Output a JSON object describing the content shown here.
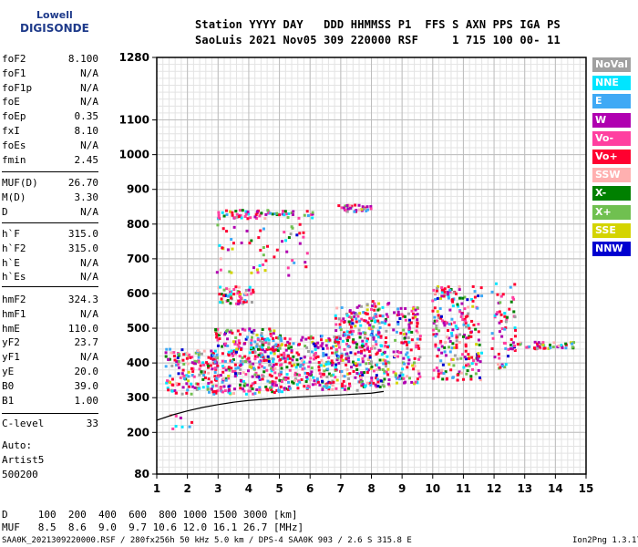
{
  "logo": {
    "line1": "Lowell",
    "line2": "DIGISONDE"
  },
  "header": {
    "row1": "Station YYYY DAY   DDD HHMMSS P1  FFS S AXN PPS IGA PS",
    "row2": "SaoLuis 2021 Nov05 309 220000 RSF     1 715 100 00- 11"
  },
  "params_group1": [
    {
      "name": "foF2",
      "value": "8.100"
    },
    {
      "name": "foF1",
      "value": "N/A"
    },
    {
      "name": "foF1p",
      "value": "N/A"
    },
    {
      "name": "foE",
      "value": "N/A"
    },
    {
      "name": "foEp",
      "value": "0.35"
    },
    {
      "name": "fxI",
      "value": "8.10"
    },
    {
      "name": "foEs",
      "value": "N/A"
    },
    {
      "name": "fmin",
      "value": "2.45"
    }
  ],
  "params_group2": [
    {
      "name": "MUF(D)",
      "value": "26.70"
    },
    {
      "name": "M(D)",
      "value": "3.30"
    },
    {
      "name": "D",
      "value": "N/A"
    }
  ],
  "params_group3": [
    {
      "name": "h`F",
      "value": "315.0"
    },
    {
      "name": "h`F2",
      "value": "315.0"
    },
    {
      "name": "h`E",
      "value": "N/A"
    },
    {
      "name": "h`Es",
      "value": "N/A"
    }
  ],
  "params_group4": [
    {
      "name": "hmF2",
      "value": "324.3"
    },
    {
      "name": "hmF1",
      "value": "N/A"
    },
    {
      "name": "hmE",
      "value": "110.0"
    },
    {
      "name": "yF2",
      "value": "23.7"
    },
    {
      "name": "yF1",
      "value": "N/A"
    },
    {
      "name": "yE",
      "value": "20.0"
    },
    {
      "name": "B0",
      "value": "39.0"
    },
    {
      "name": "B1",
      "value": "1.00"
    }
  ],
  "clevel": {
    "name": "C-level",
    "value": "33"
  },
  "auto": {
    "line1": "Auto:",
    "line2": "Artist5",
    "line3": "500200"
  },
  "legend": [
    {
      "label": "NoVal",
      "color": "#a0a0a0"
    },
    {
      "label": "NNE",
      "color": "#00e5ff"
    },
    {
      "label": "E",
      "color": "#3fa9f5"
    },
    {
      "label": "W",
      "color": "#b000b0"
    },
    {
      "label": "Vo-",
      "color": "#ff3fa0"
    },
    {
      "label": "Vo+",
      "color": "#ff0030"
    },
    {
      "label": "SSW",
      "color": "#ffb0b0"
    },
    {
      "label": "X-",
      "color": "#008000"
    },
    {
      "label": "X+",
      "color": "#70c050"
    },
    {
      "label": "SSE",
      "color": "#d4d400"
    },
    {
      "label": "NNW",
      "color": "#0000d0"
    }
  ],
  "footer": {
    "d_row": "D     100  200  400  600  800 1000 1500 3000 [km]",
    "muf_row": "MUF   8.5  8.6  9.0  9.7 10.6 12.0 16.1 26.7 [MHz]",
    "left": "SAA0K_2021309220000.RSF / 280fx256h 50 kHz 5.0 km / DPS-4 SAA0K 903 / 2.6 S 315.8 E",
    "right": "Ion2Png 1.3.17"
  },
  "chart_data": {
    "type": "scatter",
    "xlim": [
      1,
      15
    ],
    "ylim": [
      80,
      1280
    ],
    "x_ticks": [
      "1",
      "2",
      "3",
      "4",
      "5",
      "6",
      "7",
      "8",
      "9",
      "10",
      "11",
      "12",
      "13",
      "14",
      "15"
    ],
    "y_ticks": [
      "80",
      "200",
      "300",
      "400",
      "500",
      "600",
      "700",
      "800",
      "900",
      "1000",
      "1100",
      "1280"
    ],
    "grid": true,
    "clusters": [
      {
        "x0": 1.3,
        "x1": 3.0,
        "y0": 310,
        "y1": 440,
        "n": 160
      },
      {
        "x0": 2.9,
        "x1": 5.1,
        "y0": 310,
        "y1": 500,
        "n": 360
      },
      {
        "x0": 5.0,
        "x1": 6.9,
        "y0": 320,
        "y1": 480,
        "n": 220
      },
      {
        "x0": 6.8,
        "x1": 7.6,
        "y0": 320,
        "y1": 560,
        "n": 140
      },
      {
        "x0": 7.6,
        "x1": 8.6,
        "y0": 330,
        "y1": 580,
        "n": 200
      },
      {
        "x0": 8.7,
        "x1": 9.6,
        "y0": 340,
        "y1": 560,
        "n": 120
      },
      {
        "x0": 10.0,
        "x1": 11.6,
        "y0": 350,
        "y1": 620,
        "n": 230
      },
      {
        "x0": 11.9,
        "x1": 12.7,
        "y0": 380,
        "y1": 630,
        "n": 60
      },
      {
        "x0": 12.6,
        "x1": 14.6,
        "y0": 440,
        "y1": 460,
        "n": 50
      },
      {
        "x0": 3.0,
        "x1": 4.2,
        "y0": 570,
        "y1": 620,
        "n": 60
      },
      {
        "x0": 3.0,
        "x1": 6.1,
        "y0": 815,
        "y1": 840,
        "n": 70
      },
      {
        "x0": 6.9,
        "x1": 8.0,
        "y0": 835,
        "y1": 855,
        "n": 35
      },
      {
        "x0": 2.9,
        "x1": 6.0,
        "y0": 640,
        "y1": 800,
        "n": 60
      },
      {
        "x0": 1.4,
        "x1": 2.2,
        "y0": 160,
        "y1": 260,
        "n": 8
      }
    ],
    "trace": [
      [
        1.0,
        235
      ],
      [
        1.5,
        250
      ],
      [
        2,
        262
      ],
      [
        2.5,
        272
      ],
      [
        3,
        280
      ],
      [
        3.5,
        287
      ],
      [
        4,
        292
      ],
      [
        5,
        299
      ],
      [
        6,
        304
      ],
      [
        7,
        308
      ],
      [
        8,
        313
      ],
      [
        8.4,
        318
      ]
    ]
  }
}
